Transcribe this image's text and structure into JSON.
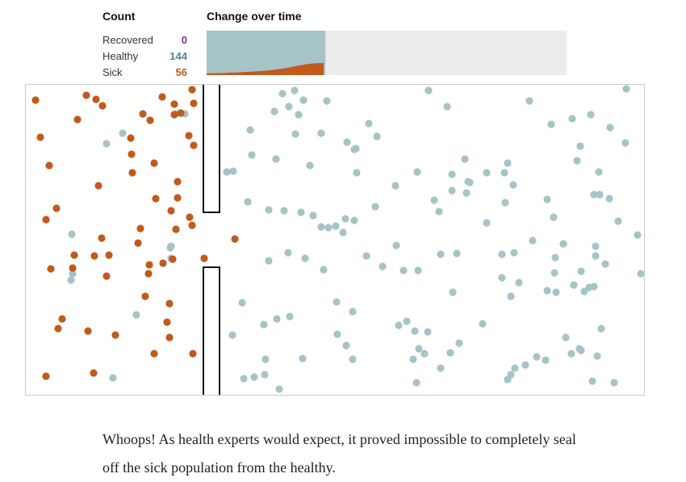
{
  "count": {
    "title": "Count",
    "recovered_label": "Recovered",
    "recovered_value": "0",
    "healthy_label": "Healthy",
    "healthy_value": "144",
    "sick_label": "Sick",
    "sick_value": "56"
  },
  "change": {
    "title": "Change over time",
    "progress_fraction": 0.33
  },
  "colors": {
    "sick": "#c15a1a",
    "healthy": "#a6c3c8",
    "recovered": "#8a2a8a",
    "timeline_bg": "#ececec"
  },
  "caption": "Whoops! As health experts would expect, it proved impossible to completely seal off the sick population from the healthy.",
  "chart_data": {
    "type": "scatter",
    "title": "",
    "series": [
      {
        "name": "Sick",
        "count": 56
      },
      {
        "name": "Healthy",
        "count": 144
      },
      {
        "name": "Recovered",
        "count": 0
      }
    ]
  }
}
